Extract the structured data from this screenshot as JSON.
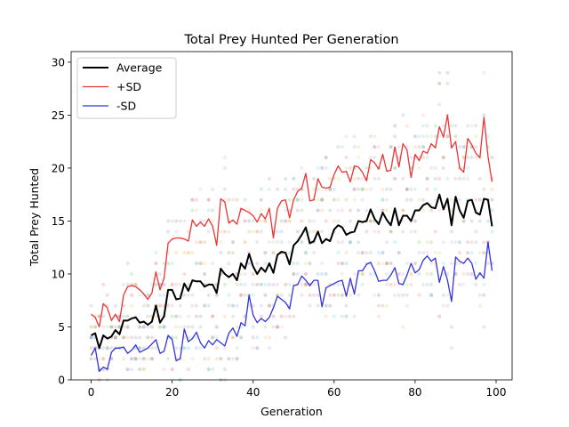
{
  "chart_data": {
    "type": "line",
    "title": "Total Prey Hunted Per Generation",
    "xlabel": "Generation",
    "ylabel": "Total Prey Hunted",
    "xlim": [
      -4.95,
      103.95
    ],
    "ylim": [
      0,
      31
    ],
    "xticks": [
      0,
      20,
      40,
      60,
      80,
      100
    ],
    "yticks": [
      0,
      5,
      10,
      15,
      20,
      25,
      30
    ],
    "grid": false,
    "legend_position": "top-left",
    "x": [
      0,
      1,
      2,
      3,
      4,
      5,
      6,
      7,
      8,
      9,
      10,
      11,
      12,
      13,
      14,
      15,
      16,
      17,
      18,
      19,
      20,
      21,
      22,
      23,
      24,
      25,
      26,
      27,
      28,
      29,
      30,
      31,
      32,
      33,
      34,
      35,
      36,
      37,
      38,
      39,
      40,
      41,
      42,
      43,
      44,
      45,
      46,
      47,
      48,
      49,
      50,
      51,
      52,
      53,
      54,
      55,
      56,
      57,
      58,
      59,
      60,
      61,
      62,
      63,
      64,
      65,
      66,
      67,
      68,
      69,
      70,
      71,
      72,
      73,
      74,
      75,
      76,
      77,
      78,
      79,
      80,
      81,
      82,
      83,
      84,
      85,
      86,
      87,
      88,
      89,
      90,
      91,
      92,
      93,
      94,
      95,
      96,
      97,
      98,
      99
    ],
    "series": [
      {
        "name": "Average",
        "color": "#000000",
        "values": [
          4.2,
          4.4,
          3.0,
          4.2,
          3.9,
          4.1,
          4.7,
          4.3,
          5.6,
          5.6,
          5.8,
          5.9,
          5.4,
          5.5,
          5.2,
          5.5,
          7.0,
          5.4,
          6.0,
          8.5,
          8.5,
          7.6,
          7.7,
          9.1,
          8.4,
          9.4,
          9.3,
          9.3,
          8.8,
          9.0,
          9.0,
          8.2,
          10.5,
          10.0,
          9.7,
          10.0,
          9.4,
          11.0,
          10.5,
          11.9,
          10.7,
          10.0,
          10.6,
          10.2,
          11.0,
          10.1,
          11.8,
          12.1,
          12.0,
          10.9,
          12.7,
          13.1,
          13.7,
          14.4,
          12.9,
          13.1,
          14.0,
          12.9,
          13.3,
          13.1,
          14.2,
          14.6,
          14.4,
          13.7,
          13.9,
          14.0,
          15.0,
          14.9,
          15.0,
          16.1,
          15.2,
          14.7,
          15.8,
          15.1,
          14.6,
          16.2,
          14.6,
          15.5,
          15.5,
          15.0,
          16.0,
          16.0,
          16.5,
          16.7,
          16.3,
          16.2,
          17.5,
          16.1,
          17.1,
          14.6,
          17.3,
          16.0,
          15.3,
          16.9,
          17.0,
          15.8,
          15.6,
          17.1,
          17.0,
          14.5
        ]
      },
      {
        "name": "+SD",
        "color": "#ee3333",
        "values": [
          6.2,
          5.9,
          5.0,
          7.2,
          6.8,
          5.6,
          6.2,
          5.5,
          8.0,
          8.8,
          8.9,
          8.8,
          8.5,
          8.1,
          7.6,
          8.2,
          10.2,
          8.5,
          9.6,
          12.9,
          13.3,
          13.4,
          13.4,
          13.3,
          13.1,
          15.1,
          14.5,
          14.9,
          14.5,
          15.2,
          14.5,
          12.7,
          17.1,
          16.8,
          14.8,
          15.1,
          14.7,
          16.2,
          16.0,
          15.8,
          15.5,
          14.9,
          15.7,
          15.2,
          16.2,
          13.4,
          16.2,
          16.9,
          17.0,
          15.3,
          17.0,
          17.8,
          18.1,
          19.5,
          16.9,
          17.0,
          19.0,
          18.2,
          18.1,
          18.2,
          19.4,
          20.2,
          19.6,
          19.7,
          18.7,
          20.2,
          20.1,
          19.6,
          18.8,
          20.8,
          20.5,
          19.9,
          21.3,
          19.7,
          19.8,
          22.0,
          20.1,
          22.3,
          21.7,
          19.1,
          21.3,
          20.7,
          21.6,
          21.4,
          22.3,
          21.9,
          23.9,
          22.9,
          25.0,
          21.9,
          22.5,
          20.0,
          19.6,
          22.8,
          22.2,
          21.4,
          21.0,
          24.8,
          21.1,
          18.7
        ]
      },
      {
        "name": "-SD",
        "color": "#3333dd",
        "values": [
          2.3,
          3.0,
          0.8,
          1.2,
          1.0,
          2.6,
          3.0,
          3.0,
          3.1,
          2.5,
          2.8,
          3.3,
          2.6,
          2.8,
          3.0,
          3.4,
          3.8,
          2.5,
          2.7,
          4.2,
          3.8,
          1.8,
          2.0,
          4.8,
          3.6,
          3.9,
          4.5,
          3.5,
          3.0,
          3.7,
          3.3,
          3.8,
          3.5,
          3.2,
          4.4,
          4.9,
          4.1,
          5.4,
          5.1,
          8.0,
          6.1,
          5.4,
          5.8,
          5.5,
          5.9,
          6.8,
          7.9,
          7.6,
          7.3,
          6.7,
          8.9,
          9.0,
          9.8,
          9.4,
          8.9,
          9.4,
          9.4,
          6.9,
          8.7,
          8.9,
          9.1,
          9.3,
          9.4,
          7.9,
          9.6,
          8.1,
          10.3,
          10.3,
          10.9,
          11.1,
          10.3,
          9.3,
          9.4,
          9.4,
          9.9,
          10.6,
          9.1,
          9.0,
          9.9,
          11.0,
          10.1,
          10.4,
          11.3,
          11.7,
          11.2,
          11.5,
          9.2,
          10.7,
          9.4,
          7.4,
          11.6,
          11.2,
          11.0,
          11.5,
          11.0,
          9.5,
          10.1,
          9.6,
          13.0,
          10.3
        ]
      }
    ]
  }
}
